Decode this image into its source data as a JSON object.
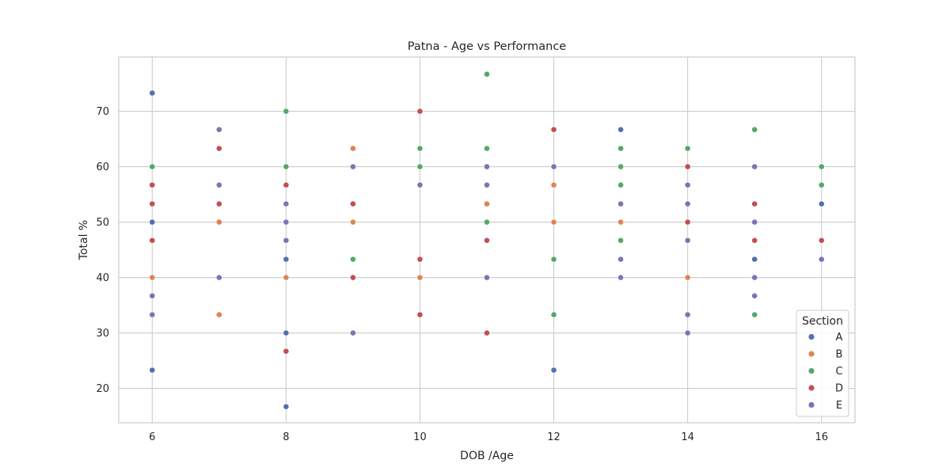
{
  "chart_data": {
    "type": "scatter",
    "title": "Patna - Age vs Performance",
    "xlabel": "DOB /Age",
    "ylabel": "Total %",
    "xlim": [
      5.5,
      16.5
    ],
    "ylim": [
      13.8,
      79.8
    ],
    "xticks": [
      6,
      8,
      10,
      12,
      14,
      16
    ],
    "yticks": [
      20,
      30,
      40,
      50,
      60,
      70
    ],
    "grid": true,
    "legend": {
      "title": "Section",
      "placement": "bottom-right"
    },
    "series": [
      {
        "name": "A",
        "color": "#4c72b0",
        "points": [
          [
            6,
            73.3
          ],
          [
            6,
            50
          ],
          [
            6,
            23.3
          ],
          [
            8,
            43.3
          ],
          [
            8,
            30
          ],
          [
            8,
            16.7
          ],
          [
            12,
            23.3
          ],
          [
            13,
            66.7
          ],
          [
            15,
            43.3
          ],
          [
            16,
            53.3
          ]
        ]
      },
      {
        "name": "B",
        "color": "#dd8452",
        "points": [
          [
            6,
            40
          ],
          [
            7,
            50
          ],
          [
            7,
            33.3
          ],
          [
            8,
            40
          ],
          [
            9,
            63.3
          ],
          [
            9,
            50
          ],
          [
            10,
            40
          ],
          [
            11,
            53.3
          ],
          [
            12,
            56.7
          ],
          [
            12,
            50
          ],
          [
            13,
            50
          ],
          [
            14,
            40
          ]
        ]
      },
      {
        "name": "C",
        "color": "#55a868",
        "points": [
          [
            6,
            60
          ],
          [
            8,
            70
          ],
          [
            8,
            60
          ],
          [
            9,
            43.3
          ],
          [
            10,
            63.3
          ],
          [
            10,
            60
          ],
          [
            11,
            76.7
          ],
          [
            11,
            63.3
          ],
          [
            11,
            50
          ],
          [
            12,
            43.3
          ],
          [
            12,
            33.3
          ],
          [
            13,
            63.3
          ],
          [
            13,
            60
          ],
          [
            13,
            56.7
          ],
          [
            13,
            46.7
          ],
          [
            14,
            63.3
          ],
          [
            15,
            66.7
          ],
          [
            15,
            33.3
          ],
          [
            16,
            60
          ],
          [
            16,
            56.7
          ]
        ]
      },
      {
        "name": "D",
        "color": "#c44e52",
        "points": [
          [
            6,
            56.7
          ],
          [
            6,
            53.3
          ],
          [
            6,
            46.7
          ],
          [
            7,
            63.3
          ],
          [
            7,
            53.3
          ],
          [
            8,
            56.7
          ],
          [
            8,
            26.7
          ],
          [
            9,
            53.3
          ],
          [
            9,
            40
          ],
          [
            10,
            70
          ],
          [
            10,
            43.3
          ],
          [
            10,
            33.3
          ],
          [
            11,
            46.7
          ],
          [
            11,
            30
          ],
          [
            12,
            66.7
          ],
          [
            14,
            60
          ],
          [
            14,
            50
          ],
          [
            15,
            53.3
          ],
          [
            15,
            46.7
          ],
          [
            16,
            46.7
          ]
        ]
      },
      {
        "name": "E",
        "color": "#8172b3",
        "points": [
          [
            6,
            36.7
          ],
          [
            6,
            33.3
          ],
          [
            7,
            66.7
          ],
          [
            7,
            56.7
          ],
          [
            7,
            40
          ],
          [
            8,
            53.3
          ],
          [
            8,
            50
          ],
          [
            8,
            46.7
          ],
          [
            9,
            60
          ],
          [
            9,
            30
          ],
          [
            10,
            56.7
          ],
          [
            11,
            60
          ],
          [
            11,
            56.7
          ],
          [
            11,
            40
          ],
          [
            12,
            60
          ],
          [
            13,
            53.3
          ],
          [
            13,
            43.3
          ],
          [
            13,
            40
          ],
          [
            14,
            56.7
          ],
          [
            14,
            53.3
          ],
          [
            14,
            46.7
          ],
          [
            14,
            33.3
          ],
          [
            14,
            30
          ],
          [
            15,
            60
          ],
          [
            15,
            50
          ],
          [
            15,
            40
          ],
          [
            15,
            36.7
          ],
          [
            16,
            43.3
          ]
        ]
      }
    ]
  }
}
